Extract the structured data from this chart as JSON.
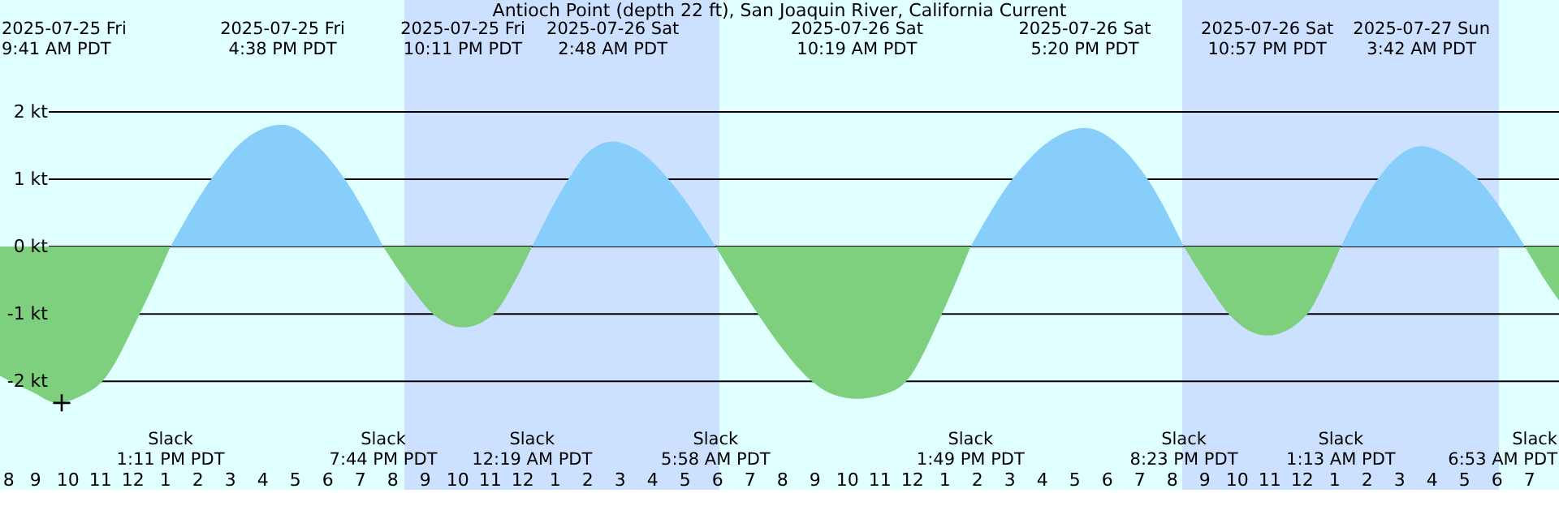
{
  "chart_data": {
    "type": "area",
    "title": "Antioch Point (depth 22 ft), San Joaquin River, California Current",
    "xlim": [
      "2025-07-25T07:56",
      "2025-07-27T07:56"
    ],
    "xticks": [
      {
        "value": "2025-07-25T08:00",
        "label": "8"
      },
      {
        "value": "2025-07-25T09:00",
        "label": "9"
      },
      {
        "value": "2025-07-25T10:00",
        "label": "10"
      },
      {
        "value": "2025-07-25T11:00",
        "label": "11"
      },
      {
        "value": "2025-07-25T12:00",
        "label": "12"
      },
      {
        "value": "2025-07-25T13:00",
        "label": "1"
      },
      {
        "value": "2025-07-25T14:00",
        "label": "2"
      },
      {
        "value": "2025-07-25T15:00",
        "label": "3"
      },
      {
        "value": "2025-07-25T16:00",
        "label": "4"
      },
      {
        "value": "2025-07-25T17:00",
        "label": "5"
      },
      {
        "value": "2025-07-25T18:00",
        "label": "6"
      },
      {
        "value": "2025-07-25T19:00",
        "label": "7"
      },
      {
        "value": "2025-07-25T20:00",
        "label": "8"
      },
      {
        "value": "2025-07-25T21:00",
        "label": "9"
      },
      {
        "value": "2025-07-25T22:00",
        "label": "10"
      },
      {
        "value": "2025-07-25T23:00",
        "label": "11"
      },
      {
        "value": "2025-07-26T00:00",
        "label": "12"
      },
      {
        "value": "2025-07-26T01:00",
        "label": "1"
      },
      {
        "value": "2025-07-26T02:00",
        "label": "2"
      },
      {
        "value": "2025-07-26T03:00",
        "label": "3"
      },
      {
        "value": "2025-07-26T04:00",
        "label": "4"
      },
      {
        "value": "2025-07-26T05:00",
        "label": "5"
      },
      {
        "value": "2025-07-26T06:00",
        "label": "6"
      },
      {
        "value": "2025-07-26T07:00",
        "label": "7"
      },
      {
        "value": "2025-07-26T08:00",
        "label": "8"
      },
      {
        "value": "2025-07-26T09:00",
        "label": "9"
      },
      {
        "value": "2025-07-26T10:00",
        "label": "10"
      },
      {
        "value": "2025-07-26T11:00",
        "label": "11"
      },
      {
        "value": "2025-07-26T12:00",
        "label": "12"
      },
      {
        "value": "2025-07-26T13:00",
        "label": "1"
      },
      {
        "value": "2025-07-26T14:00",
        "label": "2"
      },
      {
        "value": "2025-07-26T15:00",
        "label": "3"
      },
      {
        "value": "2025-07-26T16:00",
        "label": "4"
      },
      {
        "value": "2025-07-26T17:00",
        "label": "5"
      },
      {
        "value": "2025-07-26T18:00",
        "label": "6"
      },
      {
        "value": "2025-07-26T19:00",
        "label": "7"
      },
      {
        "value": "2025-07-26T20:00",
        "label": "8"
      },
      {
        "value": "2025-07-26T21:00",
        "label": "9"
      },
      {
        "value": "2025-07-26T22:00",
        "label": "10"
      },
      {
        "value": "2025-07-26T23:00",
        "label": "11"
      },
      {
        "value": "2025-07-27T00:00",
        "label": "12"
      },
      {
        "value": "2025-07-27T01:00",
        "label": "1"
      },
      {
        "value": "2025-07-27T02:00",
        "label": "2"
      },
      {
        "value": "2025-07-27T03:00",
        "label": "3"
      },
      {
        "value": "2025-07-27T04:00",
        "label": "4"
      },
      {
        "value": "2025-07-27T05:00",
        "label": "5"
      },
      {
        "value": "2025-07-27T06:00",
        "label": "6"
      },
      {
        "value": "2025-07-27T07:00",
        "label": "7"
      }
    ],
    "ylim": [
      -3.61,
      3.66
    ],
    "yticks": [
      {
        "value": -2,
        "label": "-2 kt"
      },
      {
        "value": -1,
        "label": "-1 kt"
      },
      {
        "value": 0,
        "label": "0 kt"
      },
      {
        "value": 1,
        "label": "1 kt"
      },
      {
        "value": 2,
        "label": "2 kt"
      }
    ],
    "grid": "y",
    "bands": [
      {
        "axis": "x",
        "from": "2025-07-25T20:23",
        "to": "2025-07-26T06:05",
        "color": "#cce0ff"
      },
      {
        "axis": "x",
        "from": "2025-07-26T20:20",
        "to": "2025-07-27T06:05",
        "color": "#cce0ff"
      }
    ],
    "series": [
      {
        "color": "#7ecf7e",
        "x": [
          "2025-07-25T07:56",
          "2025-07-25T08:56",
          "2025-07-25T09:41",
          "2025-07-25T10:30",
          "2025-07-25T11:05",
          "2025-07-25T12:14",
          "2025-07-25T13:11"
        ],
        "values": [
          -1.92,
          -2.16,
          -2.32,
          -2.2,
          -2.0,
          -1.0,
          0
        ]
      },
      {
        "color": "#87cefa",
        "x": [
          "2025-07-25T13:11",
          "2025-07-25T14:26",
          "2025-07-25T15:30",
          "2025-07-25T16:38",
          "2025-07-25T17:42",
          "2025-07-25T18:33",
          "2025-07-25T19:44"
        ],
        "values": [
          0,
          1.0,
          1.6,
          1.81,
          1.5,
          1.0,
          0
        ]
      },
      {
        "color": "#7ecf7e",
        "x": [
          "2025-07-25T19:44",
          "2025-07-25T20:30",
          "2025-07-25T21:16",
          "2025-07-25T22:11",
          "2025-07-25T23:08",
          "2025-07-25T23:48",
          "2025-07-26T00:19"
        ],
        "values": [
          0,
          -0.55,
          -1.0,
          -1.2,
          -1.0,
          -0.5,
          0
        ]
      },
      {
        "color": "#87cefa",
        "x": [
          "2025-07-26T00:19",
          "2025-07-26T01:26",
          "2025-07-26T02:00",
          "2025-07-26T02:48",
          "2025-07-26T03:36",
          "2025-07-26T04:31",
          "2025-07-26T05:58"
        ],
        "values": [
          0,
          1.0,
          1.38,
          1.56,
          1.42,
          1.0,
          0
        ]
      },
      {
        "color": "#7ecf7e",
        "x": [
          "2025-07-26T05:58",
          "2025-07-26T06:36",
          "2025-07-26T07:16",
          "2025-07-26T08:00",
          "2025-07-26T08:56",
          "2025-07-26T09:36",
          "2025-07-26T10:19",
          "2025-07-26T11:06",
          "2025-07-26T11:50",
          "2025-07-26T12:56",
          "2025-07-26T13:49"
        ],
        "values": [
          0,
          -0.5,
          -1.0,
          -1.5,
          -2.0,
          -2.2,
          -2.26,
          -2.2,
          -2.0,
          -1.0,
          0
        ]
      },
      {
        "color": "#87cefa",
        "x": [
          "2025-07-26T13:49",
          "2025-07-26T15:06",
          "2025-07-26T16:12",
          "2025-07-26T17:20",
          "2025-07-26T18:24",
          "2025-07-26T19:16",
          "2025-07-26T20:23"
        ],
        "values": [
          0,
          1.0,
          1.55,
          1.76,
          1.5,
          1.0,
          0
        ]
      },
      {
        "color": "#7ecf7e",
        "x": [
          "2025-07-26T20:23",
          "2025-07-26T21:06",
          "2025-07-26T21:46",
          "2025-07-26T22:57",
          "2025-07-27T00:11",
          "2025-07-27T00:42",
          "2025-07-27T01:13"
        ],
        "values": [
          0,
          -0.55,
          -1.0,
          -1.32,
          -1.0,
          -0.55,
          0
        ]
      },
      {
        "color": "#87cefa",
        "x": [
          "2025-07-27T01:13",
          "2025-07-27T02:21",
          "2025-07-27T03:00",
          "2025-07-27T03:42",
          "2025-07-27T04:30",
          "2025-07-27T05:26",
          "2025-07-27T06:53"
        ],
        "values": [
          0,
          1.0,
          1.35,
          1.49,
          1.35,
          1.0,
          0
        ]
      },
      {
        "color": "#7ecf7e",
        "x": [
          "2025-07-27T06:53",
          "2025-07-27T07:24",
          "2025-07-27T07:56"
        ],
        "values": [
          0,
          -0.42,
          -0.8
        ]
      },
      {
        "type": "scatter",
        "color": "#000000",
        "marker": "cross",
        "x": [
          "2025-07-25T09:50"
        ],
        "values": [
          -2.32
        ]
      }
    ],
    "annotations": [
      "2025-07-25 Fri\n9:41 AM PDT",
      "2025-07-25 Fri\n4:38 PM PDT",
      "2025-07-25 Fri\n10:11 PM PDT",
      "2025-07-26 Sat\n2:48 AM PDT",
      "2025-07-26 Sat\n10:19 AM PDT",
      "2025-07-26 Sat\n5:20 PM PDT",
      "2025-07-26 Sat\n10:57 PM PDT",
      "2025-07-27 Sun\n3:42 AM PDT",
      "Slack\n1:11 PM PDT",
      "Slack\n7:44 PM PDT",
      "Slack\n12:19 AM PDT",
      "Slack\n5:58 AM PDT",
      "Slack\n1:49 PM PDT",
      "Slack\n8:23 PM PDT",
      "Slack\n1:13 AM PDT",
      "Slack\n6:53 AM PDT"
    ]
  }
}
